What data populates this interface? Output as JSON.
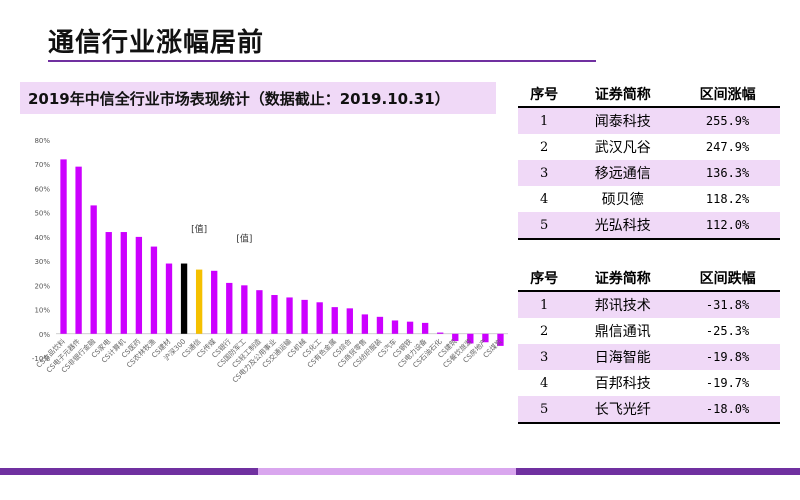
{
  "page": {
    "title": "通信行业涨幅居前"
  },
  "colors": {
    "accent": "#7030a0",
    "light": "#f0d9f7",
    "bar": "#cc00ff",
    "highlight_black": "#000000",
    "highlight_gold": "#f5c000"
  },
  "chart_data": {
    "type": "bar",
    "title": "2019年中信全行业市场表现统计（数据截止：2019.10.31）",
    "ylim": [
      -10,
      80
    ],
    "yticks": [
      "80%",
      "70%",
      "60%",
      "50%",
      "40%",
      "30%",
      "20%",
      "10%",
      "0%",
      "-10%"
    ],
    "categories": [
      "CS食品饮料",
      "CS电子元器件",
      "CS非银行金融",
      "CS家电",
      "CS计算机",
      "CS医药",
      "CS农林牧渔",
      "CS建材",
      "沪深300",
      "CS通信",
      "CS传媒",
      "CS银行",
      "CS国防军工",
      "CS轻工制造",
      "CS电力及公用事业",
      "CS交通运输",
      "CS机械",
      "CS化工",
      "CS有色金属",
      "CS综合",
      "CS商贸零售",
      "CS纺织服装",
      "CS汽车",
      "CS钢铁",
      "CS电力设备",
      "CS石油石化",
      "CS建筑",
      "CS餐饮旅游",
      "CS房地产",
      "CS煤炭"
    ],
    "values": [
      72.0,
      69.0,
      53.0,
      42.0,
      42.0,
      40.0,
      36.0,
      29.0,
      29.0,
      26.5,
      26.0,
      21.0,
      20.0,
      18.0,
      16.0,
      15.0,
      14.0,
      13.0,
      11.0,
      10.5,
      8.0,
      7.0,
      5.5,
      5.0,
      4.5,
      0.5,
      -3.0,
      -4.0,
      -3.5,
      -5.0
    ],
    "annotations": [
      "[值]",
      "[值]"
    ]
  },
  "tables": {
    "top": {
      "headers": [
        "序号",
        "证券简称",
        "区间涨幅"
      ],
      "rows": [
        [
          "1",
          "闻泰科技",
          "255.9%"
        ],
        [
          "2",
          "武汉凡谷",
          "247.9%"
        ],
        [
          "3",
          "移远通信",
          "136.3%"
        ],
        [
          "4",
          "硕贝德",
          "118.2%"
        ],
        [
          "5",
          "光弘科技",
          "112.0%"
        ]
      ]
    },
    "bottom": {
      "headers": [
        "序号",
        "证券简称",
        "区间跌幅"
      ],
      "rows": [
        [
          "1",
          "邦讯技术",
          "-31.8%"
        ],
        [
          "2",
          "鼎信通讯",
          "-25.3%"
        ],
        [
          "3",
          "日海智能",
          "-19.8%"
        ],
        [
          "4",
          "百邦科技",
          "-19.7%"
        ],
        [
          "5",
          "长飞光纤",
          "-18.0%"
        ]
      ]
    }
  }
}
